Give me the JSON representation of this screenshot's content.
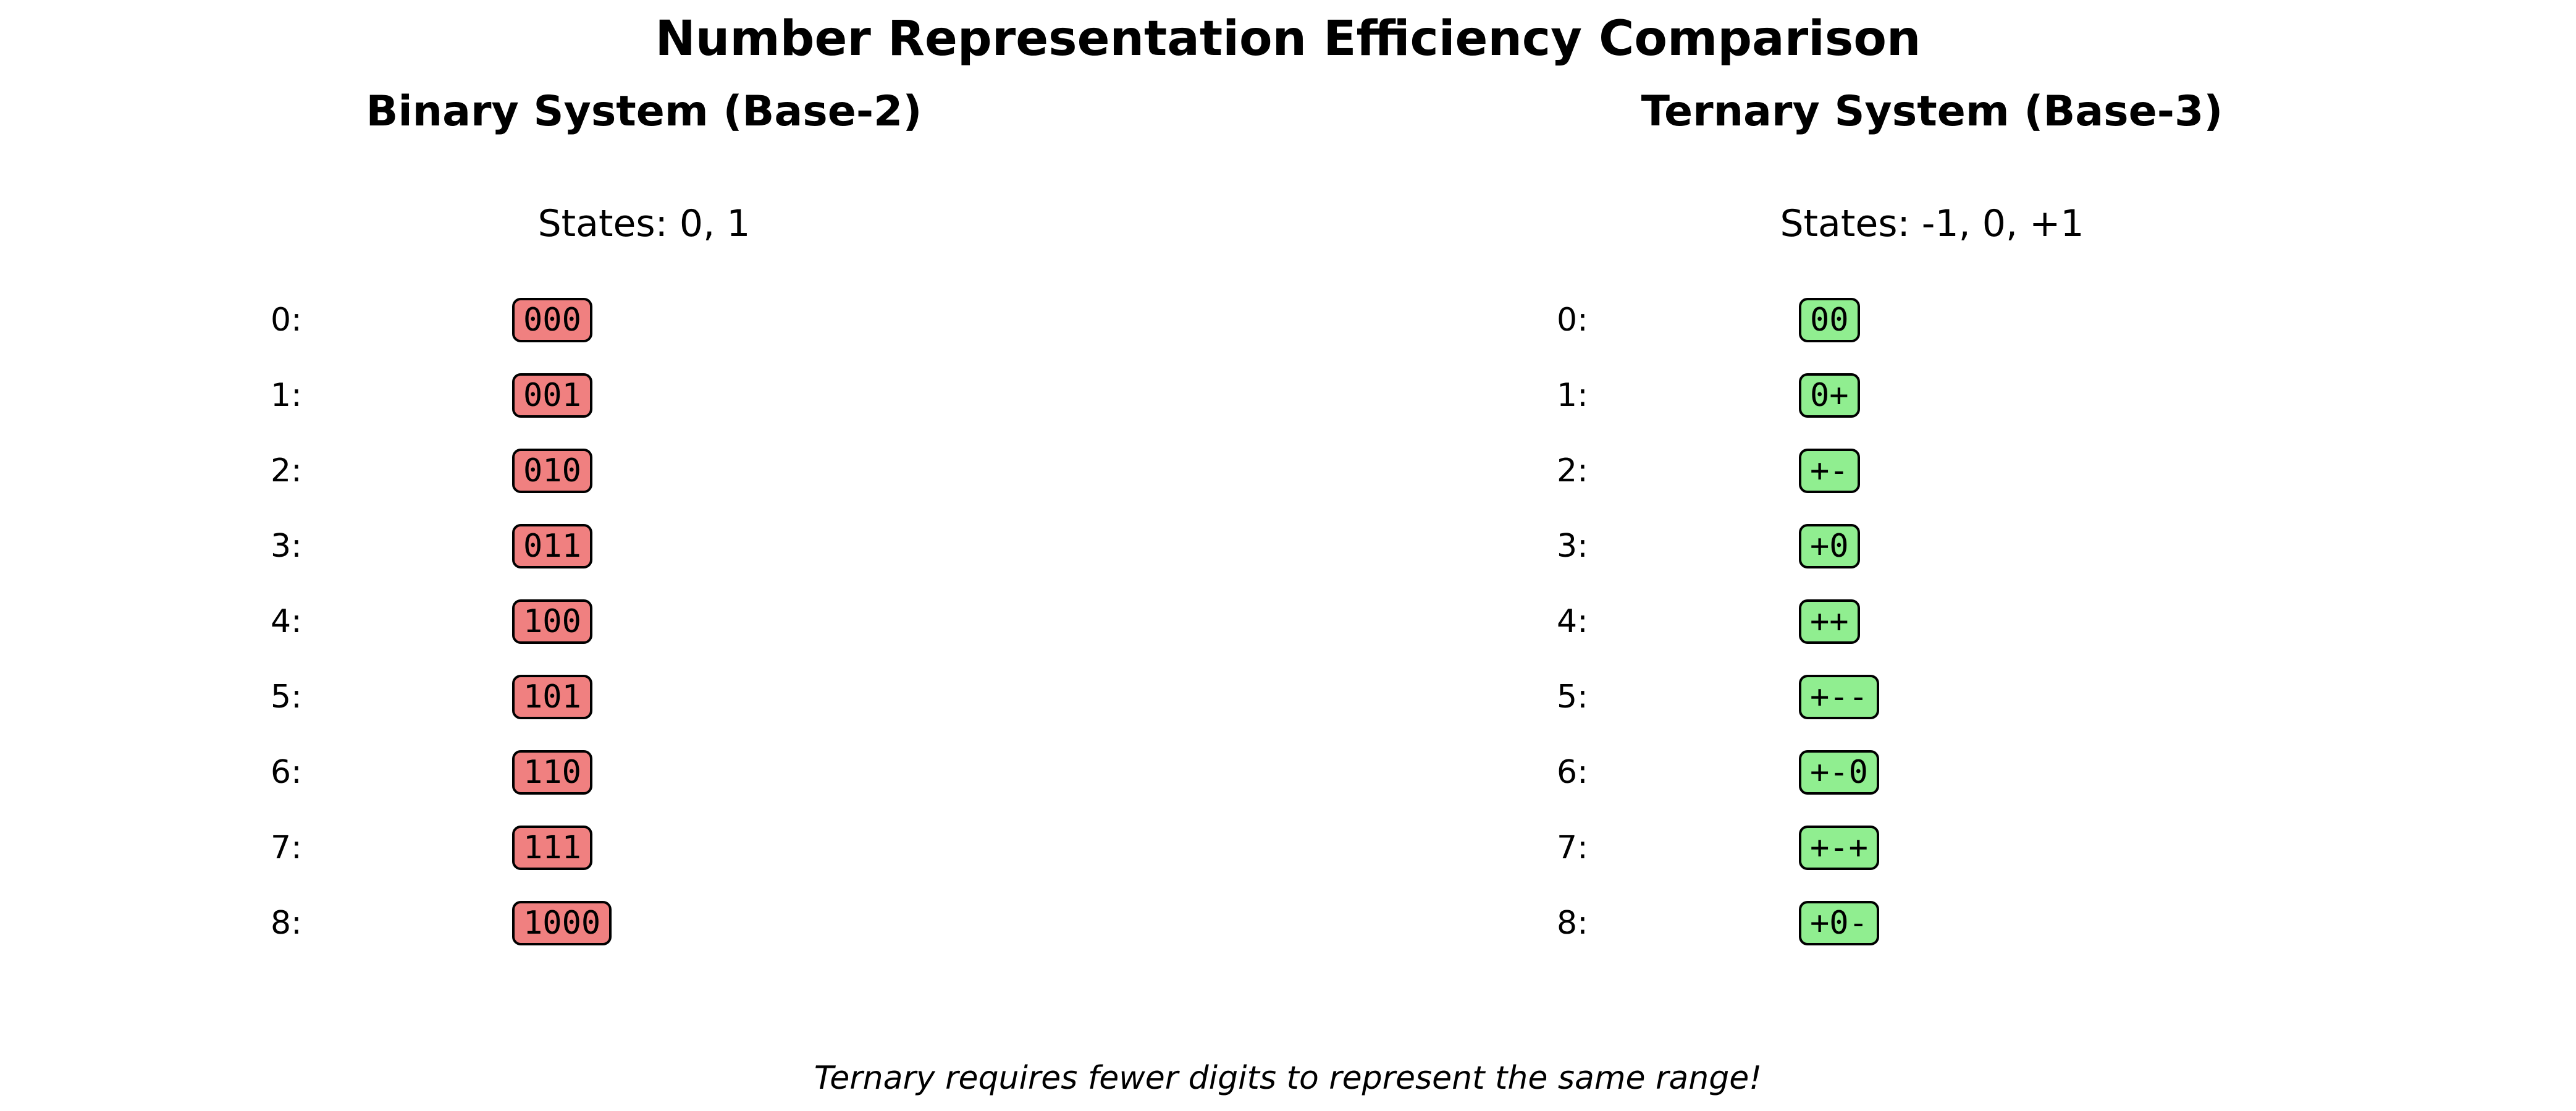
{
  "title": "Number Representation Efficiency Comparison",
  "binary": {
    "title": "Binary System (Base-2)",
    "states": "States: 0, 1",
    "box_color": "#f08080",
    "rows": [
      {
        "label": "0:",
        "code": "000"
      },
      {
        "label": "1:",
        "code": "001"
      },
      {
        "label": "2:",
        "code": "010"
      },
      {
        "label": "3:",
        "code": "011"
      },
      {
        "label": "4:",
        "code": "100"
      },
      {
        "label": "5:",
        "code": "101"
      },
      {
        "label": "6:",
        "code": "110"
      },
      {
        "label": "7:",
        "code": "111"
      },
      {
        "label": "8:",
        "code": "1000"
      }
    ]
  },
  "ternary": {
    "title": "Ternary System (Base-3)",
    "states": "States: -1, 0, +1",
    "box_color": "#90ee90",
    "rows": [
      {
        "label": "0:",
        "code": "00"
      },
      {
        "label": "1:",
        "code": "0+"
      },
      {
        "label": "2:",
        "code": "+-"
      },
      {
        "label": "3:",
        "code": "+0"
      },
      {
        "label": "4:",
        "code": "++"
      },
      {
        "label": "5:",
        "code": "+--"
      },
      {
        "label": "6:",
        "code": "+-0"
      },
      {
        "label": "7:",
        "code": "+-+"
      },
      {
        "label": "8:",
        "code": "+0-"
      }
    ]
  },
  "footer": "Ternary requires fewer digits to represent the same range!"
}
